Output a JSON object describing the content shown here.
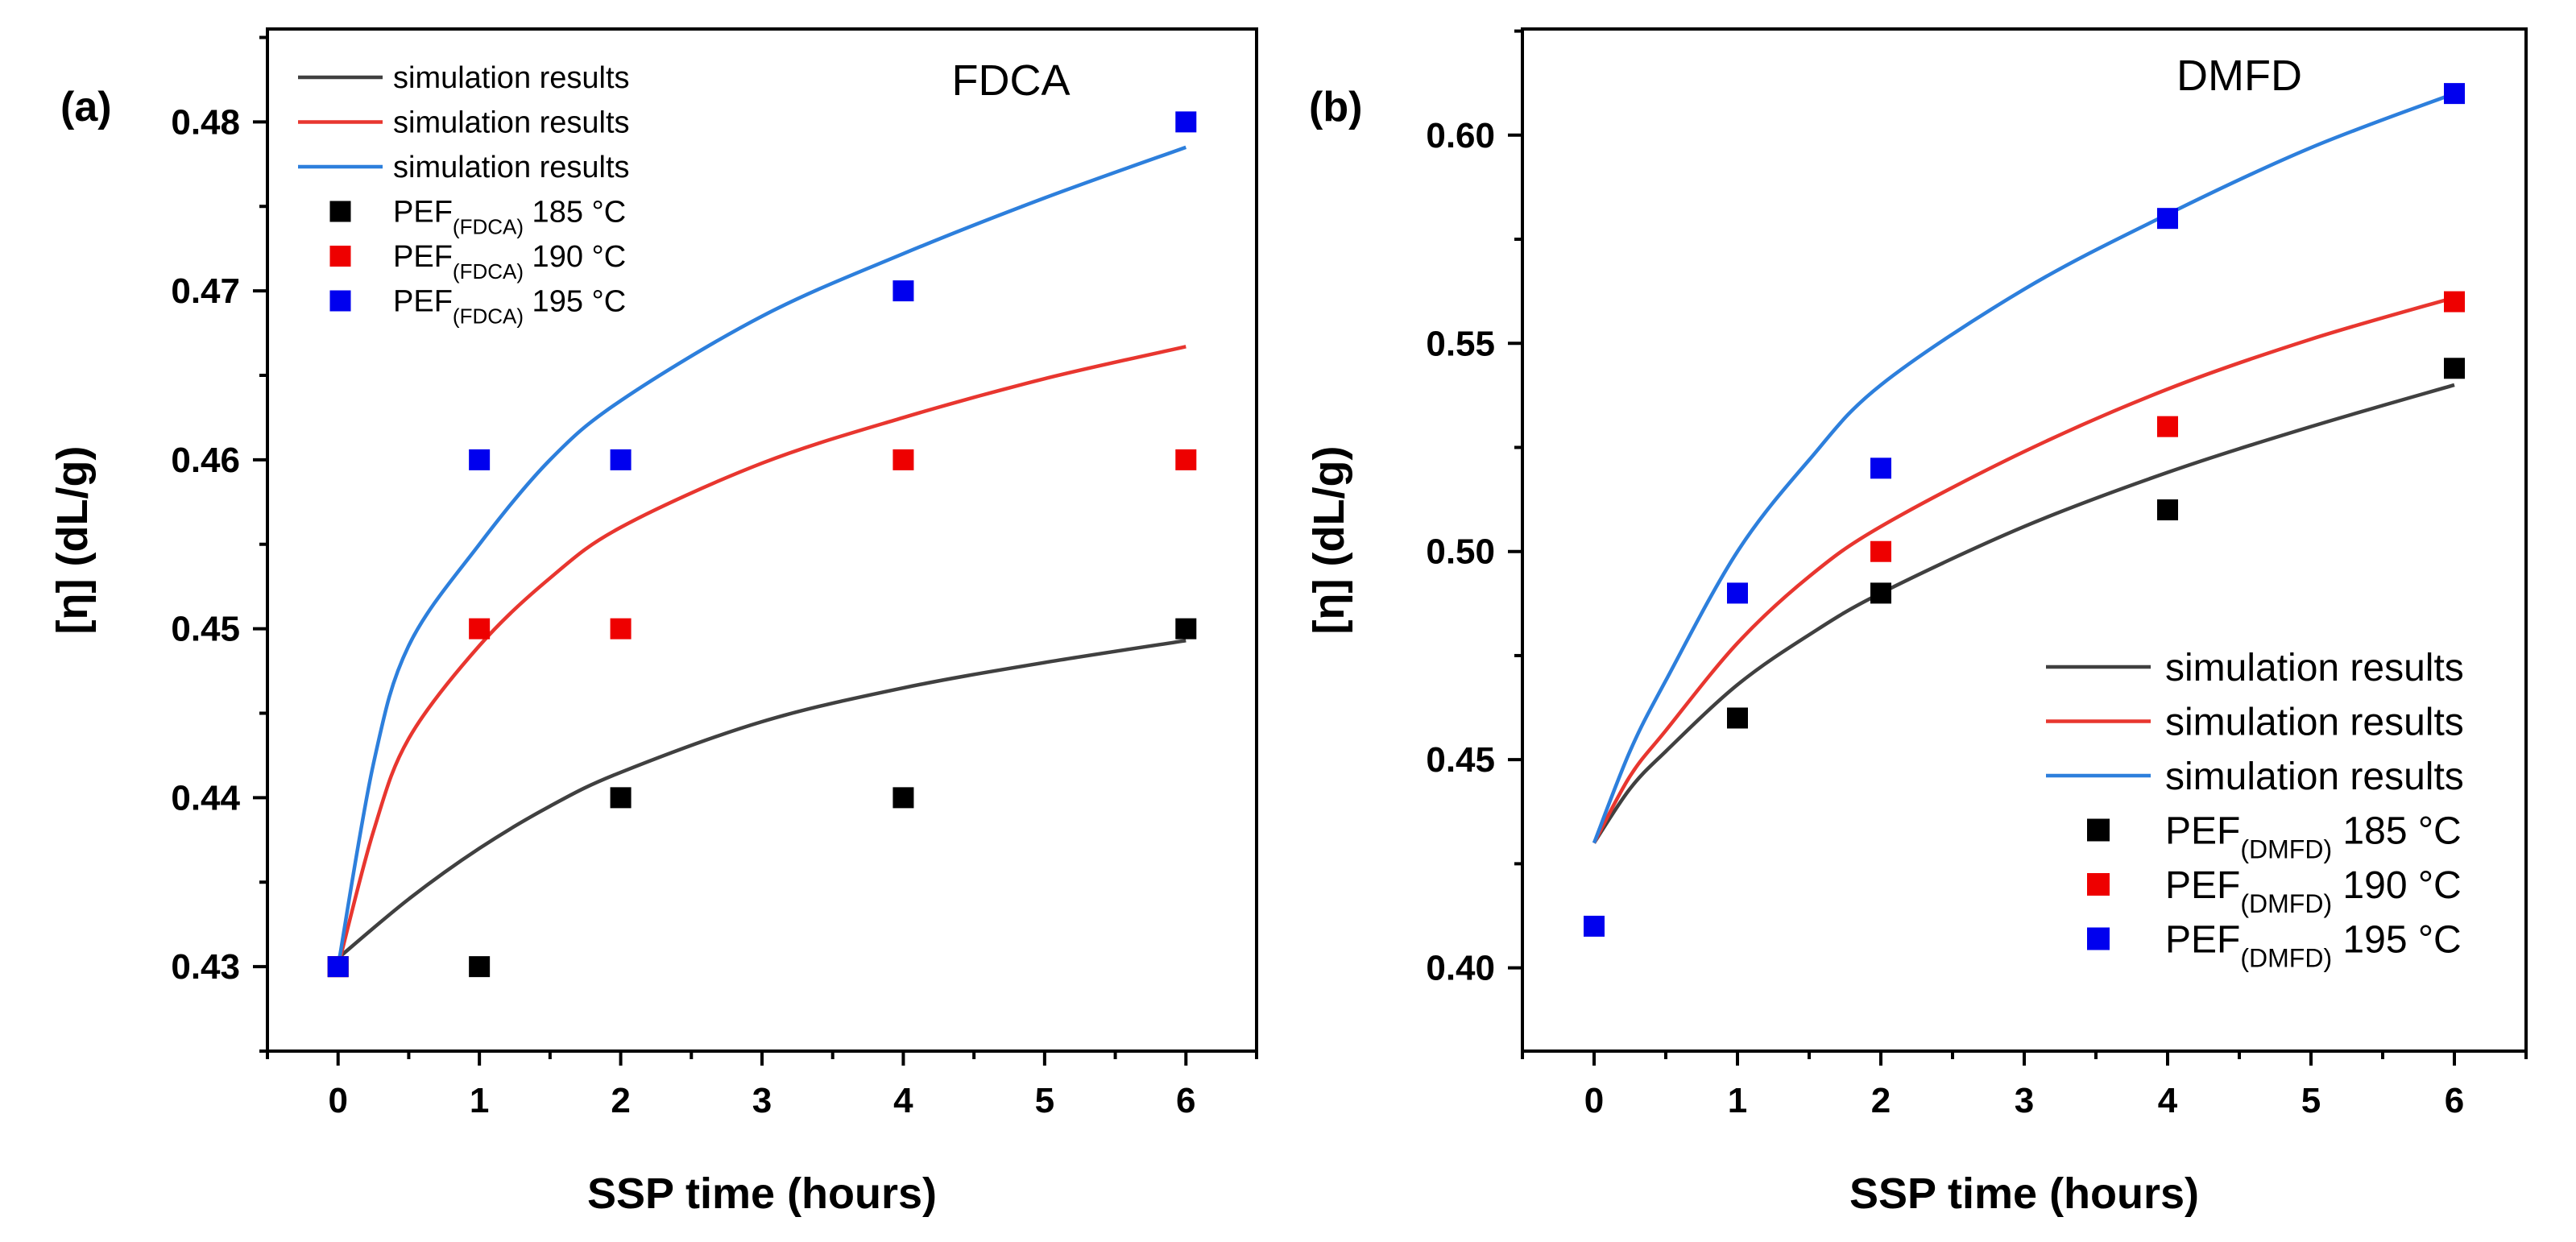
{
  "chart_data": [
    {
      "panel": "(a)",
      "type": "line",
      "title": "FDCA",
      "xlabel": "SSP time (hours)",
      "ylabel": "[η] (dL/g)",
      "xlim": [
        -0.5,
        6.5
      ],
      "ylim": [
        0.425,
        0.4855
      ],
      "xticks": [
        0,
        1,
        2,
        3,
        4,
        5,
        6
      ],
      "xtick_labels": [
        "0",
        "1",
        "2",
        "3",
        "4",
        "5",
        "6"
      ],
      "yticks": [
        0.43,
        0.44,
        0.45,
        0.46,
        0.47,
        0.48
      ],
      "ytick_labels": [
        "0.43",
        "0.44",
        "0.45",
        "0.46",
        "0.47",
        "0.48"
      ],
      "legend_position": "top-left",
      "series": [
        {
          "name": "simulation results",
          "kind": "line",
          "color": "#404040",
          "x": [
            0,
            0.5,
            1,
            1.5,
            2,
            3,
            4,
            5,
            6
          ],
          "y": [
            0.4305,
            0.434,
            0.437,
            0.4395,
            0.4415,
            0.4445,
            0.4465,
            0.448,
            0.4493
          ]
        },
        {
          "name": "simulation results",
          "kind": "line",
          "color": "#e8362f",
          "x": [
            0,
            0.25,
            0.5,
            1,
            1.5,
            2,
            3,
            4,
            5,
            6
          ],
          "y": [
            0.43,
            0.438,
            0.4435,
            0.449,
            0.453,
            0.456,
            0.4598,
            0.4625,
            0.4648,
            0.4667
          ]
        },
        {
          "name": "simulation results",
          "kind": "line",
          "color": "#2d7fdc",
          "x": [
            0,
            0.25,
            0.5,
            1,
            1.5,
            2,
            3,
            4,
            5,
            6
          ],
          "y": [
            0.43,
            0.442,
            0.449,
            0.455,
            0.46,
            0.4635,
            0.4685,
            0.4722,
            0.4755,
            0.4785
          ]
        },
        {
          "name": "PEF",
          "subscript": "(FDCA)",
          "suffix": "185 °C",
          "kind": "scatter",
          "color": "#000000",
          "x": [
            0,
            1,
            2,
            4,
            6
          ],
          "y": [
            0.43,
            0.43,
            0.44,
            0.44,
            0.45
          ]
        },
        {
          "name": "PEF",
          "subscript": "(FDCA)",
          "suffix": "190 °C",
          "kind": "scatter",
          "color": "#ee0000",
          "x": [
            0,
            1,
            2,
            4,
            6
          ],
          "y": [
            0.43,
            0.45,
            0.45,
            0.46,
            0.46
          ]
        },
        {
          "name": "PEF",
          "subscript": "(FDCA)",
          "suffix": "195 °C",
          "kind": "scatter",
          "color": "#0000ee",
          "x": [
            0,
            1,
            2,
            4,
            6
          ],
          "y": [
            0.43,
            0.46,
            0.46,
            0.47,
            0.48
          ]
        }
      ]
    },
    {
      "panel": "(b)",
      "type": "line",
      "title": "DMFD",
      "xlabel": "SSP time (hours)",
      "ylabel": "[η] (dL/g)",
      "xlim": [
        -0.5,
        6.5
      ],
      "ylim": [
        0.38,
        0.6255
      ],
      "xticks": [
        0,
        1,
        2,
        3,
        4,
        5,
        6
      ],
      "xtick_labels": [
        "0",
        "1",
        "2",
        "3",
        "4",
        "5",
        "6"
      ],
      "yticks": [
        0.4,
        0.45,
        0.5,
        0.55,
        0.6
      ],
      "ytick_labels": [
        "0.40",
        "0.45",
        "0.50",
        "0.55",
        "0.60"
      ],
      "legend_position": "bottom-right",
      "series": [
        {
          "name": "simulation results",
          "kind": "line",
          "color": "#404040",
          "x": [
            0,
            0.25,
            0.5,
            1,
            1.5,
            2,
            3,
            4,
            5,
            6
          ],
          "y": [
            0.43,
            0.443,
            0.452,
            0.468,
            0.48,
            0.49,
            0.506,
            0.519,
            0.53,
            0.54
          ]
        },
        {
          "name": "simulation results",
          "kind": "line",
          "color": "#e8362f",
          "x": [
            0,
            0.25,
            0.5,
            1,
            1.5,
            2,
            3,
            4,
            5,
            6
          ],
          "y": [
            0.43,
            0.446,
            0.457,
            0.478,
            0.494,
            0.506,
            0.524,
            0.539,
            0.551,
            0.561
          ]
        },
        {
          "name": "simulation results",
          "kind": "line",
          "color": "#2d7fdc",
          "x": [
            0,
            0.25,
            0.5,
            1,
            1.5,
            2,
            3,
            4,
            5,
            6
          ],
          "y": [
            0.43,
            0.452,
            0.469,
            0.5,
            0.522,
            0.54,
            0.563,
            0.581,
            0.597,
            0.61
          ]
        },
        {
          "name": "PEF",
          "subscript": "(DMFD)",
          "suffix": "185 °C",
          "kind": "scatter",
          "color": "#000000",
          "x": [
            1,
            2,
            4,
            6
          ],
          "y": [
            0.46,
            0.49,
            0.51,
            0.544
          ]
        },
        {
          "name": "PEF",
          "subscript": "(DMFD)",
          "suffix": "190 °C",
          "kind": "scatter",
          "color": "#ee0000",
          "x": [
            2,
            4,
            6
          ],
          "y": [
            0.5,
            0.53,
            0.56
          ]
        },
        {
          "name": "PEF",
          "subscript": "(DMFD)",
          "suffix": "195 °C",
          "kind": "scatter",
          "color": "#0000ee",
          "x": [
            0,
            1,
            2,
            4,
            6
          ],
          "y": [
            0.41,
            0.49,
            0.52,
            0.58,
            0.61
          ]
        }
      ]
    }
  ]
}
